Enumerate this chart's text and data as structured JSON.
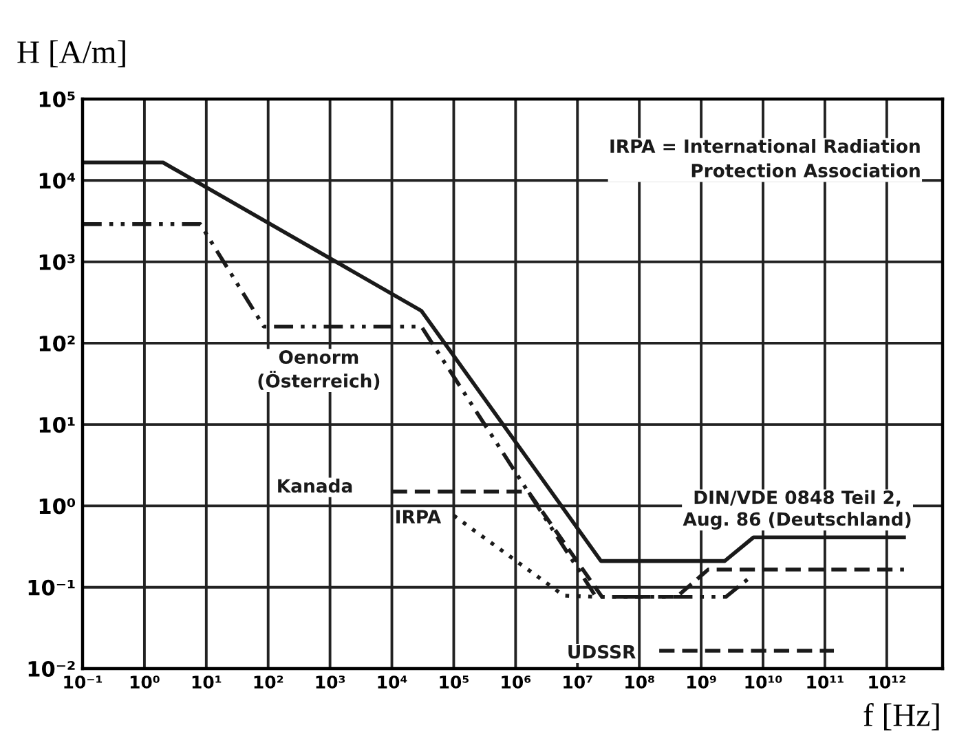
{
  "chart_data": {
    "type": "line",
    "xlabel": "f [Hz]",
    "ylabel": "H [A/m]",
    "log": "xy",
    "grid": true,
    "marker": "none",
    "xlim": [
      0.1,
      8000000000000.0
    ],
    "ylim": [
      0.01,
      100000
    ],
    "xticks": [
      {
        "value": 0.1,
        "label": "10⁻¹"
      },
      {
        "value": 1,
        "label": "10⁰"
      },
      {
        "value": 10,
        "label": "10¹"
      },
      {
        "value": 100,
        "label": "10²"
      },
      {
        "value": 1000,
        "label": "10³"
      },
      {
        "value": 10000,
        "label": "10⁴"
      },
      {
        "value": 100000,
        "label": "10⁵"
      },
      {
        "value": 1000000,
        "label": "10⁶"
      },
      {
        "value": 10000000,
        "label": "10⁷"
      },
      {
        "value": 100000000,
        "label": "10⁸"
      },
      {
        "value": 1000000000,
        "label": "10⁹"
      },
      {
        "value": 10000000000,
        "label": "10¹⁰"
      },
      {
        "value": 100000000000,
        "label": "10¹¹"
      },
      {
        "value": 1000000000000,
        "label": "10¹²"
      }
    ],
    "yticks": [
      {
        "value": 0.01,
        "label": "10⁻²"
      },
      {
        "value": 0.1,
        "label": "10⁻¹"
      },
      {
        "value": 1,
        "label": "10⁰"
      },
      {
        "value": 10,
        "label": "10¹"
      },
      {
        "value": 100,
        "label": "10²"
      },
      {
        "value": 1000,
        "label": "10³"
      },
      {
        "value": 10000,
        "label": "10⁴"
      },
      {
        "value": 100000,
        "label": "10⁵"
      }
    ],
    "series": [
      {
        "name": "DIN/VDE 0848 Teil 2,\nAug. 86 (Deutschland)",
        "color": "#1a1a1a",
        "line_style": "solid",
        "x": [
          0.1,
          2,
          30000,
          24000000,
          2400000000,
          7000000000,
          1900000000000
        ],
        "values": [
          16600,
          16600,
          250,
          0.21,
          0.21,
          0.41,
          0.41
        ]
      },
      {
        "name": "Oenorm\n(Österreich)",
        "color": "#1a1a1a",
        "line_style": "dashdot",
        "x": [
          0.1,
          8,
          85,
          30000,
          20000000,
          2500000000,
          6000000000
        ],
        "values": [
          2900,
          2900,
          160,
          160,
          0.076,
          0.076,
          0.13
        ]
      },
      {
        "name": "Kanada",
        "color": "#1a1a1a",
        "line_style": "dashed",
        "x": [
          10000,
          1600000,
          25000000,
          400000000,
          1300000000,
          1900000000000
        ],
        "values": [
          1.5,
          1.5,
          0.076,
          0.076,
          0.165,
          0.165
        ]
      },
      {
        "name": "IRPA",
        "color": "#1a1a1a",
        "line_style": "dotted",
        "x": [
          100000,
          6000000,
          20000000
        ],
        "values": [
          0.76,
          0.079,
          0.076
        ]
      },
      {
        "name": "UDSSR",
        "color": "#1a1a1a",
        "line_style": "dashed",
        "x": [
          210000000,
          140000000000
        ],
        "values": [
          0.0166,
          0.0166
        ]
      }
    ],
    "annotations": [
      "IRPA = International Radiation\nProtection Association"
    ]
  }
}
